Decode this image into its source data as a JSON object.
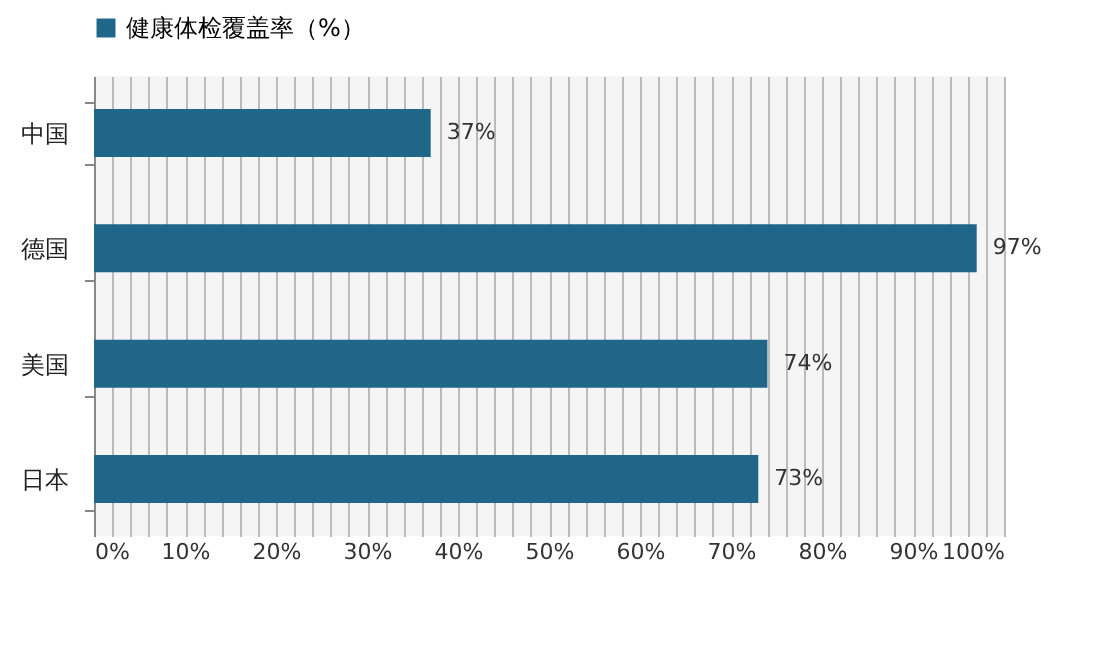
{
  "chart_data": {
    "type": "bar",
    "orientation": "horizontal",
    "categories": [
      "中国",
      "德国",
      "美国",
      "日本"
    ],
    "series": [
      {
        "name": "健康体检覆盖率（%）",
        "color": "#1f6688",
        "values": [
          37,
          97,
          74,
          73
        ],
        "value_labels": [
          "37%",
          "97%",
          "74%",
          "73%"
        ]
      }
    ],
    "xlim": [
      0,
      100
    ],
    "xticks": [
      {
        "value": 0,
        "label": "0%"
      },
      {
        "value": 2,
        "label": null
      },
      {
        "value": 4,
        "label": null
      },
      {
        "value": 6,
        "label": null
      },
      {
        "value": 8,
        "label": null
      },
      {
        "value": 10,
        "label": "10%"
      },
      {
        "value": 12,
        "label": null
      },
      {
        "value": 14,
        "label": null
      },
      {
        "value": 16,
        "label": null
      },
      {
        "value": 18,
        "label": null
      },
      {
        "value": 20,
        "label": "20%"
      },
      {
        "value": 22,
        "label": null
      },
      {
        "value": 24,
        "label": null
      },
      {
        "value": 26,
        "label": null
      },
      {
        "value": 28,
        "label": null
      },
      {
        "value": 30,
        "label": "30%"
      },
      {
        "value": 32,
        "label": null
      },
      {
        "value": 34,
        "label": null
      },
      {
        "value": 36,
        "label": null
      },
      {
        "value": 38,
        "label": null
      },
      {
        "value": 40,
        "label": "40%"
      },
      {
        "value": 42,
        "label": null
      },
      {
        "value": 44,
        "label": null
      },
      {
        "value": 46,
        "label": null
      },
      {
        "value": 48,
        "label": null
      },
      {
        "value": 50,
        "label": "50%"
      },
      {
        "value": 52,
        "label": null
      },
      {
        "value": 54,
        "label": null
      },
      {
        "value": 56,
        "label": null
      },
      {
        "value": 58,
        "label": null
      },
      {
        "value": 60,
        "label": "60%"
      },
      {
        "value": 62,
        "label": null
      },
      {
        "value": 64,
        "label": null
      },
      {
        "value": 66,
        "label": null
      },
      {
        "value": 68,
        "label": null
      },
      {
        "value": 70,
        "label": "70%"
      },
      {
        "value": 72,
        "label": null
      },
      {
        "value": 74,
        "label": null
      },
      {
        "value": 76,
        "label": null
      },
      {
        "value": 78,
        "label": null
      },
      {
        "value": 80,
        "label": "80%"
      },
      {
        "value": 82,
        "label": null
      },
      {
        "value": 84,
        "label": null
      },
      {
        "value": 86,
        "label": null
      },
      {
        "value": 88,
        "label": null
      },
      {
        "value": 90,
        "label": "90%"
      },
      {
        "value": 92,
        "label": null
      },
      {
        "value": 94,
        "label": null
      },
      {
        "value": 96,
        "label": null
      },
      {
        "value": 98,
        "label": null
      },
      {
        "value": 100,
        "label": "100%"
      }
    ],
    "grid": "x",
    "legend": "top"
  }
}
